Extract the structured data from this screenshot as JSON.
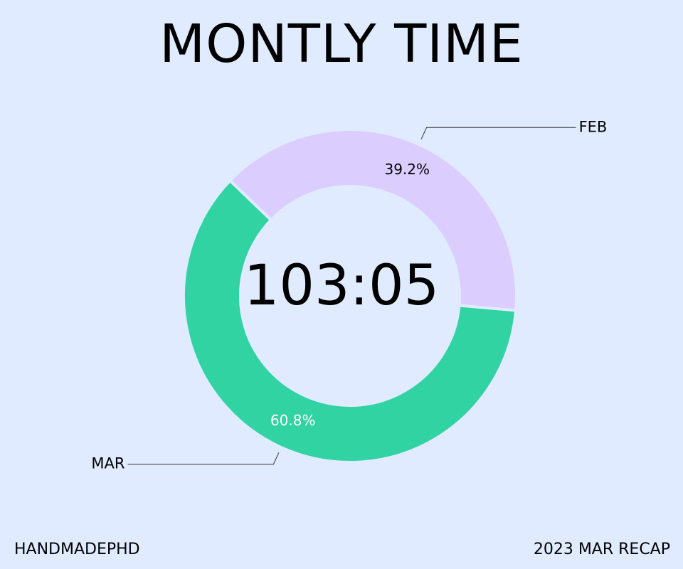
{
  "title": "MONTLY TIME",
  "center_total": "103:05",
  "footer": {
    "left": "HANDMADEPHD",
    "right": "2023 MAR RECAP"
  },
  "colors": {
    "background": "#e0ebff",
    "feb": "#dccdff",
    "mar": "#31d3a3",
    "text": "#000000",
    "pct_on_mar": "#ffffff"
  },
  "chart_data": {
    "type": "pie",
    "donut": true,
    "slices": [
      {
        "label": "FEB",
        "value": 39.2,
        "display": "39.2%",
        "color": "#dccdff"
      },
      {
        "label": "MAR",
        "value": 60.8,
        "display": "60.8%",
        "color": "#31d3a3"
      }
    ]
  }
}
